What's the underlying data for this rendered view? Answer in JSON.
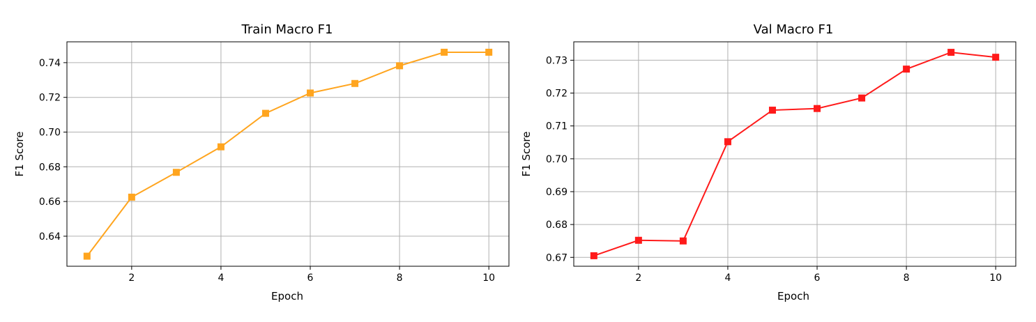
{
  "chart_data": [
    {
      "type": "line",
      "title": "Train Macro F1",
      "xlabel": "Epoch",
      "ylabel": "F1 Score",
      "x": [
        1,
        2,
        3,
        4,
        5,
        6,
        7,
        8,
        9,
        10
      ],
      "series": [
        {
          "values": [
            0.6285,
            0.6625,
            0.6768,
            0.6915,
            0.7108,
            0.7225,
            0.728,
            0.7382,
            0.746,
            0.746
          ],
          "color": "#ffa51f",
          "marker": "square"
        }
      ],
      "xticks": [
        2,
        4,
        6,
        8,
        10
      ],
      "yticks": [
        0.64,
        0.66,
        0.68,
        0.7,
        0.72,
        0.74
      ],
      "ytick_labels": [
        "0.64",
        "0.66",
        "0.68",
        "0.70",
        "0.72",
        "0.74"
      ],
      "xlim": [
        0.55,
        10.45
      ],
      "ylim": [
        0.6227,
        0.752
      ],
      "grid": true
    },
    {
      "type": "line",
      "title": "Val Macro F1",
      "xlabel": "Epoch",
      "ylabel": "F1 Score",
      "x": [
        1,
        2,
        3,
        4,
        5,
        6,
        7,
        8,
        9,
        10
      ],
      "series": [
        {
          "values": [
            0.6705,
            0.6752,
            0.675,
            0.7052,
            0.7148,
            0.7153,
            0.7185,
            0.7273,
            0.7324,
            0.7309
          ],
          "color": "#ff1a1a",
          "marker": "square"
        }
      ],
      "xticks": [
        2,
        4,
        6,
        8,
        10
      ],
      "yticks": [
        0.67,
        0.68,
        0.69,
        0.7,
        0.71,
        0.72,
        0.73
      ],
      "ytick_labels": [
        "0.67",
        "0.68",
        "0.69",
        "0.70",
        "0.71",
        "0.72",
        "0.73"
      ],
      "xlim": [
        0.55,
        10.45
      ],
      "ylim": [
        0.6673,
        0.7356
      ],
      "grid": true
    }
  ]
}
